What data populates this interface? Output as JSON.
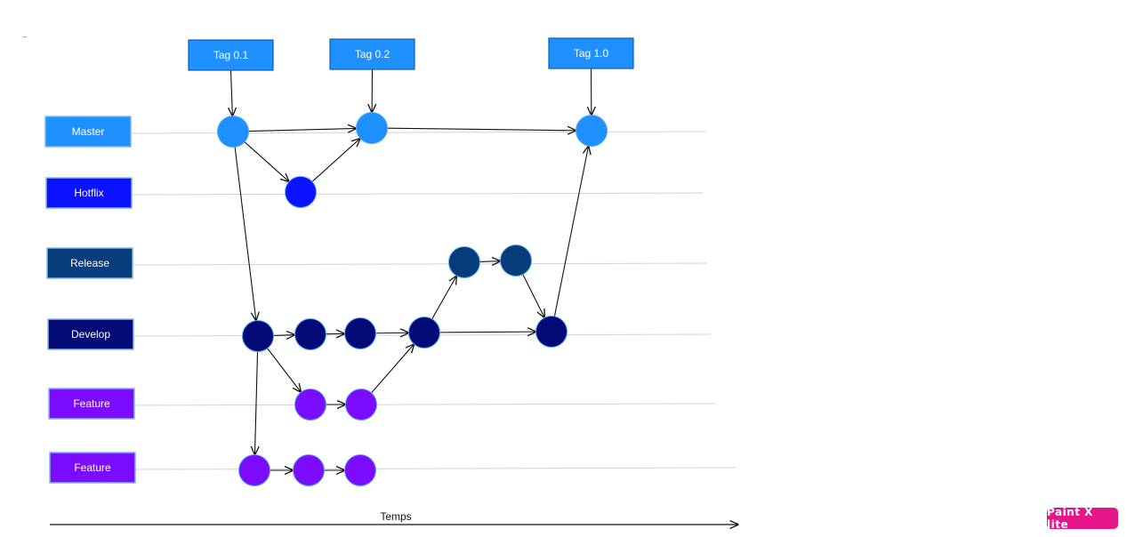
{
  "tags": [
    {
      "id": "tag01",
      "label": "Tag 0.1"
    },
    {
      "id": "tag02",
      "label": "Tag 0.2"
    },
    {
      "id": "tag10",
      "label": "Tag 1.0"
    }
  ],
  "lanes": [
    {
      "id": "master",
      "label": "Master",
      "color": "#1e90ff"
    },
    {
      "id": "hotfix",
      "label": "Hotflix",
      "color": "#0a12ff"
    },
    {
      "id": "release",
      "label": "Release",
      "color": "#063c7a"
    },
    {
      "id": "develop",
      "label": "Develop",
      "color": "#030a78"
    },
    {
      "id": "feature1",
      "label": "Feature",
      "color": "#7b0cff"
    },
    {
      "id": "feature2",
      "label": "Feature",
      "color": "#7b0cff"
    }
  ],
  "commits": [
    {
      "id": "m1",
      "lane": "master"
    },
    {
      "id": "m2",
      "lane": "master"
    },
    {
      "id": "m3",
      "lane": "master"
    },
    {
      "id": "h1",
      "lane": "hotfix"
    },
    {
      "id": "r1",
      "lane": "release"
    },
    {
      "id": "r2",
      "lane": "release"
    },
    {
      "id": "d1",
      "lane": "develop"
    },
    {
      "id": "d2",
      "lane": "develop"
    },
    {
      "id": "d3",
      "lane": "develop"
    },
    {
      "id": "d4",
      "lane": "develop"
    },
    {
      "id": "d5",
      "lane": "develop"
    },
    {
      "id": "f1",
      "lane": "feature1"
    },
    {
      "id": "f2",
      "lane": "feature1"
    },
    {
      "id": "g1",
      "lane": "feature2"
    },
    {
      "id": "g2",
      "lane": "feature2"
    },
    {
      "id": "g3",
      "lane": "feature2"
    }
  ],
  "edges": [
    [
      "tag01",
      "m1"
    ],
    [
      "tag02",
      "m2"
    ],
    [
      "tag10",
      "m3"
    ],
    [
      "m1",
      "m2"
    ],
    [
      "m2",
      "m3"
    ],
    [
      "m1",
      "h1"
    ],
    [
      "h1",
      "m2"
    ],
    [
      "m1",
      "d1"
    ],
    [
      "d1",
      "d2"
    ],
    [
      "d2",
      "d3"
    ],
    [
      "d3",
      "d4"
    ],
    [
      "d4",
      "d5"
    ],
    [
      "d5",
      "m3"
    ],
    [
      "d4",
      "r1"
    ],
    [
      "r1",
      "r2"
    ],
    [
      "r2",
      "d5"
    ],
    [
      "d1",
      "f1"
    ],
    [
      "f1",
      "f2"
    ],
    [
      "f2",
      "d4"
    ],
    [
      "d1",
      "g1"
    ],
    [
      "g1",
      "g2"
    ],
    [
      "g2",
      "g3"
    ]
  ],
  "time_axis": {
    "label": "Temps"
  },
  "watermark": {
    "text": "Paint X lite"
  }
}
